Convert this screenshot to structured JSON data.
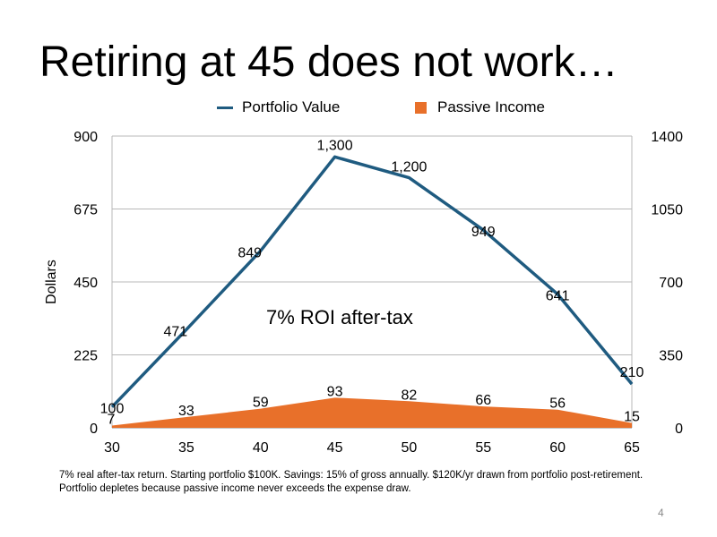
{
  "slide": {
    "title": "Retiring at 45 does not work…",
    "footnote": "7% real after-tax return. Starting portfolio $100K. Savings: 15% of gross annually. $120K/yr drawn from portfolio post-retirement. Portfolio depletes because passive income never exceeds the expense draw.",
    "page_number": "4"
  },
  "chart_data": {
    "type": "line",
    "ylabel": "Dollars",
    "annotation": "7% ROI after-tax",
    "legend_position": "top",
    "grid": true,
    "x": [
      30,
      35,
      40,
      45,
      50,
      55,
      60,
      65
    ],
    "x_tick_labels": [
      "30",
      "35",
      "40",
      "45",
      "50",
      "55",
      "60",
      "65"
    ],
    "y_left_ticks": [
      "0",
      "225",
      "450",
      "675",
      "900"
    ],
    "y_left_range": [
      0,
      900
    ],
    "y_right_ticks": [
      "0",
      "350",
      "700",
      "1050",
      "1400"
    ],
    "y_right_range": [
      0,
      1400
    ],
    "series": [
      {
        "name": "Portfolio Value",
        "type": "line",
        "axis": "right",
        "color": "#1f5b80",
        "values": [
          100,
          471,
          849,
          1300,
          1200,
          949,
          641,
          210
        ],
        "labels": [
          "100",
          "471",
          "849",
          "1,300",
          "1,200",
          "949",
          "641",
          "210"
        ]
      },
      {
        "name": "Passive Income",
        "type": "area",
        "axis": "left",
        "color": "#e8702a",
        "values": [
          7,
          33,
          59,
          93,
          82,
          66,
          56,
          15
        ],
        "labels": [
          "7",
          "33",
          "59",
          "93",
          "82",
          "66",
          "56",
          "15"
        ]
      }
    ]
  }
}
